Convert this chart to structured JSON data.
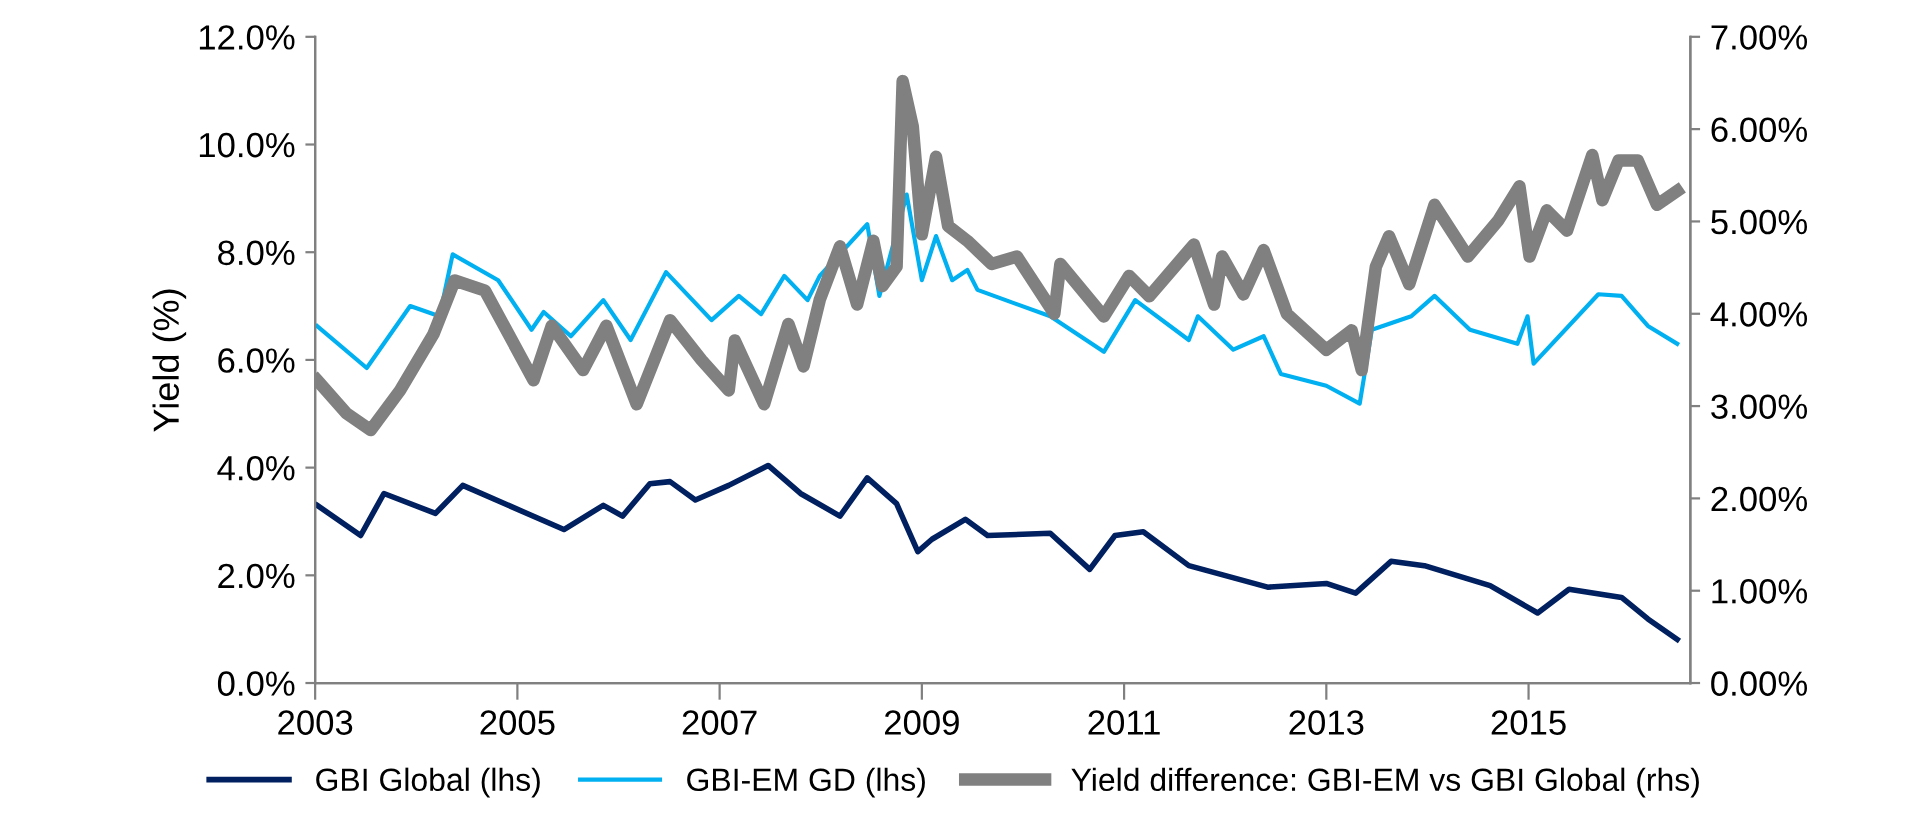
{
  "chart_data": {
    "type": "line",
    "ylabel": "Yield (%)",
    "xlim": [
      2003,
      2016.6
    ],
    "xticks": [
      2003,
      2005,
      2007,
      2009,
      2011,
      2013,
      2015
    ],
    "ylim": [
      0,
      12
    ],
    "yticks": [
      {
        "value": 0,
        "label": "0.0%"
      },
      {
        "value": 2,
        "label": "2.0%"
      },
      {
        "value": 4,
        "label": "4.0%"
      },
      {
        "value": 6,
        "label": "6.0%"
      },
      {
        "value": 8,
        "label": "8.0%"
      },
      {
        "value": 10,
        "label": "10.0%"
      },
      {
        "value": 12,
        "label": "12.0%"
      }
    ],
    "y2lim": [
      0,
      7
    ],
    "y2ticks": [
      {
        "value": 0,
        "label": "0.00%"
      },
      {
        "value": 1,
        "label": "1.00%"
      },
      {
        "value": 2,
        "label": "2.00%"
      },
      {
        "value": 3,
        "label": "3.00%"
      },
      {
        "value": 4,
        "label": "4.00%"
      },
      {
        "value": 5,
        "label": "5.00%"
      },
      {
        "value": 6,
        "label": "6.00%"
      },
      {
        "value": 7,
        "label": "7.00%"
      }
    ],
    "grid": false,
    "legend": "bottom",
    "marker": "none",
    "line_style": "solid",
    "series": [
      {
        "name": "GBI Global (lhs)",
        "color": "#002060",
        "x": [
          2003.02,
          2003.45,
          2003.68,
          2004.19,
          2004.46,
          2005.46,
          2005.85,
          2006.04,
          2006.31,
          2006.51,
          2006.76,
          2007.09,
          2007.48,
          2007.8,
          2008.19,
          2008.46,
          2008.75,
          2008.96,
          2009.1,
          2009.43,
          2009.65,
          2010.27,
          2010.66,
          2010.91,
          2011.19,
          2011.64,
          2012.42,
          2013.0,
          2013.29,
          2013.64,
          2013.97,
          2014.62,
          2015.09,
          2015.4,
          2015.92,
          2016.18,
          2016.47
        ],
        "values": [
          3.3,
          2.74,
          3.52,
          3.15,
          3.67,
          2.85,
          3.3,
          3.1,
          3.7,
          3.74,
          3.4,
          3.67,
          4.04,
          3.52,
          3.1,
          3.81,
          3.33,
          2.44,
          2.67,
          3.04,
          2.74,
          2.78,
          2.11,
          2.74,
          2.81,
          2.18,
          1.78,
          1.85,
          1.67,
          2.26,
          2.18,
          1.81,
          1.3,
          1.74,
          1.59,
          1.19,
          0.81
        ]
      },
      {
        "name": "GBI-EM GD (lhs)",
        "color": "#00b0f0",
        "x": [
          2003.02,
          2003.51,
          2003.94,
          2004.23,
          2004.36,
          2004.81,
          2005.14,
          2005.26,
          2005.53,
          2005.85,
          2006.12,
          2006.47,
          2006.92,
          2007.19,
          2007.41,
          2007.64,
          2007.87,
          2007.99,
          2008.46,
          2008.58,
          2008.85,
          2009.0,
          2009.14,
          2009.3,
          2009.45,
          2009.55,
          2010.27,
          2010.8,
          2011.11,
          2011.64,
          2011.73,
          2012.08,
          2012.38,
          2012.55,
          2013.0,
          2013.33,
          2013.45,
          2013.84,
          2014.07,
          2014.42,
          2014.89,
          2014.99,
          2015.05,
          2015.69,
          2015.92,
          2016.18,
          2016.47
        ],
        "values": [
          6.63,
          5.85,
          7.0,
          6.81,
          7.96,
          7.48,
          6.56,
          6.89,
          6.44,
          7.11,
          6.37,
          7.63,
          6.74,
          7.19,
          6.85,
          7.56,
          7.11,
          7.56,
          8.52,
          7.19,
          9.07,
          7.48,
          8.3,
          7.48,
          7.67,
          7.3,
          6.81,
          6.15,
          7.11,
          6.37,
          6.81,
          6.19,
          6.44,
          5.74,
          5.52,
          5.19,
          6.56,
          6.81,
          7.19,
          6.56,
          6.3,
          6.81,
          5.93,
          7.22,
          7.19,
          6.63,
          6.3
        ]
      },
      {
        "name": "Yield difference: GBI-EM vs GBI Global (rhs)",
        "color": "#808080",
        "axis": "y2",
        "x": [
          2003.02,
          2003.31,
          2003.55,
          2003.84,
          2004.17,
          2004.38,
          2004.68,
          2005.16,
          2005.34,
          2005.65,
          2005.88,
          2006.18,
          2006.51,
          2006.82,
          2007.09,
          2007.15,
          2007.44,
          2007.68,
          2007.83,
          2007.99,
          2008.19,
          2008.36,
          2008.52,
          2008.61,
          2008.75,
          2008.81,
          2008.91,
          2009.0,
          2009.14,
          2009.26,
          2009.45,
          2009.69,
          2009.94,
          2010.31,
          2010.37,
          2010.8,
          2011.05,
          2011.25,
          2011.69,
          2011.89,
          2011.97,
          2012.18,
          2012.38,
          2012.61,
          2013.0,
          2013.25,
          2013.35,
          2013.49,
          2013.62,
          2013.82,
          2014.07,
          2014.4,
          2014.7,
          2014.91,
          2015.01,
          2015.18,
          2015.38,
          2015.63,
          2015.73,
          2015.89,
          2016.08,
          2016.27,
          2016.47
        ],
        "values": [
          3.28,
          2.92,
          2.74,
          3.17,
          3.78,
          4.36,
          4.25,
          3.28,
          3.87,
          3.39,
          3.87,
          3.02,
          3.93,
          3.5,
          3.17,
          3.71,
          3.02,
          3.89,
          3.43,
          4.15,
          4.73,
          4.1,
          4.79,
          4.3,
          4.51,
          6.52,
          6.03,
          4.86,
          5.7,
          4.95,
          4.79,
          4.54,
          4.62,
          4.0,
          4.54,
          3.97,
          4.41,
          4.19,
          4.75,
          4.1,
          4.62,
          4.21,
          4.69,
          4.0,
          3.61,
          3.82,
          3.39,
          4.51,
          4.84,
          4.32,
          5.18,
          4.62,
          5.01,
          5.38,
          4.62,
          5.12,
          4.9,
          5.72,
          5.23,
          5.66,
          5.66,
          5.18,
          5.33
        ]
      }
    ]
  }
}
